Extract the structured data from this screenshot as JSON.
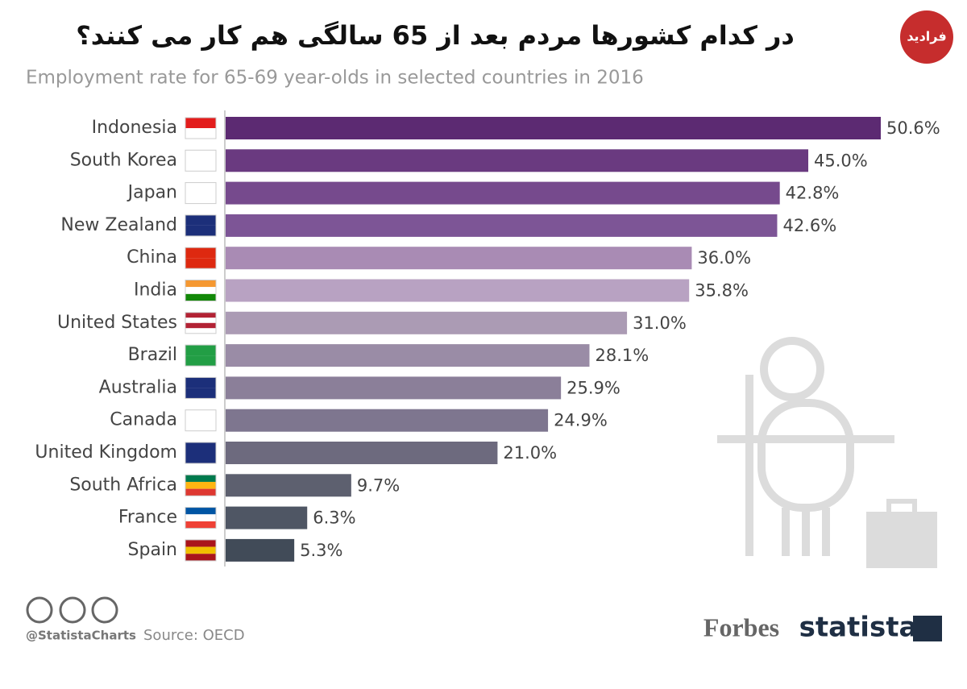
{
  "chart_data": {
    "type": "hbar",
    "title": "در کدام کشورها مردم بعد از 65 سالگی هم کار می کنند؟",
    "subtitle": "Employment rate for 65-69 year-olds in selected countries in 2016",
    "categories": [
      "Indonesia",
      "South Korea",
      "Japan",
      "New Zealand",
      "China",
      "India",
      "United States",
      "Brazil",
      "Australia",
      "Canada",
      "United Kingdom",
      "South Africa",
      "France",
      "Spain"
    ],
    "values": [
      50.6,
      45.0,
      42.8,
      42.6,
      36.0,
      35.8,
      31.0,
      28.1,
      25.9,
      24.9,
      21.0,
      9.7,
      6.3,
      5.3
    ],
    "value_labels": [
      "50.6%",
      "45.0%",
      "42.8%",
      "42.6%",
      "36.0%",
      "35.8%",
      "31.0%",
      "28.1%",
      "25.9%",
      "24.9%",
      "21.0%",
      "9.7%",
      "6.3%",
      "5.3%"
    ],
    "colors": [
      "#5c2a72",
      "#6a3a80",
      "#764a8d",
      "#7d5596",
      "#a98bb4",
      "#b8a2c2",
      "#ab9bb4",
      "#9a8ca6",
      "#8b7f99",
      "#7e768f",
      "#6d6a7e",
      "#5d606f",
      "#4f5664",
      "#414b58"
    ],
    "handle": "@StatistaCharts",
    "source": "Source: OECD",
    "brand_1": "Forbes",
    "brand_2": "statista",
    "logo": "فرادید"
  }
}
